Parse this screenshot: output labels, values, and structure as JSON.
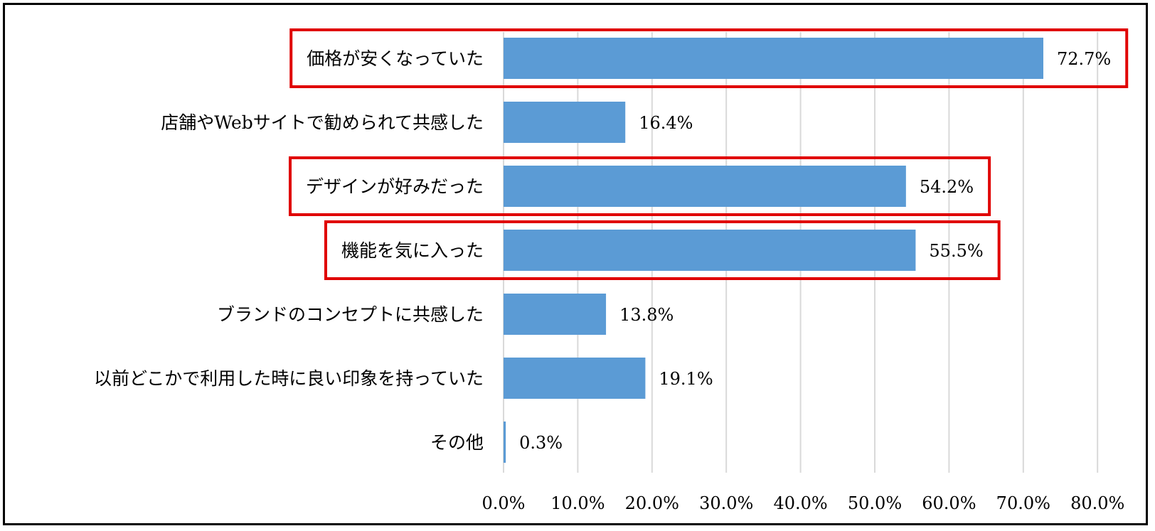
{
  "chart_data": {
    "type": "bar",
    "orientation": "horizontal",
    "title": "",
    "xlabel": "",
    "ylabel": "",
    "categories": [
      "価格が安くなっていた",
      "店舗やWebサイトで勧められて共感した",
      "デザインが好みだった",
      "機能を気に入った",
      "ブランドのコンセプトに共感した",
      "以前どこかで利用した時に良い印象を持っていた",
      "その他"
    ],
    "values": [
      72.7,
      16.4,
      54.2,
      55.5,
      13.8,
      19.1,
      0.3
    ],
    "value_labels": [
      "72.7%",
      "16.4%",
      "54.2%",
      "55.5%",
      "13.8%",
      "19.1%",
      "0.3%"
    ],
    "xlim": [
      0,
      80
    ],
    "x_ticks": [
      0,
      10,
      20,
      30,
      40,
      50,
      60,
      70,
      80
    ],
    "x_tick_labels": [
      "0.0%",
      "10.0%",
      "20.0%",
      "30.0%",
      "40.0%",
      "50.0%",
      "60.0%",
      "70.0%",
      "80.0%"
    ],
    "grid": "vertical",
    "legend": "none",
    "highlighted_categories": [
      0,
      2,
      3
    ],
    "colors": {
      "bar": "#5b9bd5",
      "grid": "#d9d9d9",
      "highlight_box": "#e00000",
      "frame": "#000000",
      "text": "#000000"
    }
  }
}
